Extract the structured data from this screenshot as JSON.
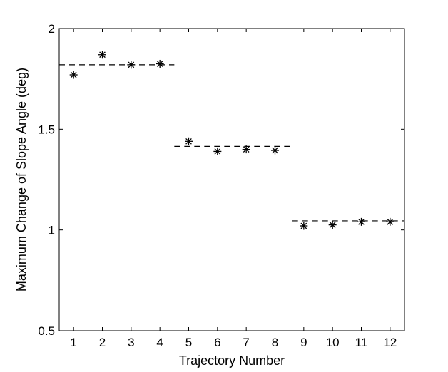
{
  "chart_data": {
    "type": "scatter",
    "title": "",
    "xlabel": "Trajectory Number",
    "ylabel": "Maximum Change of Slope Angle (deg)",
    "xlim": [
      0.5,
      12.5
    ],
    "ylim": [
      0.5,
      2.0
    ],
    "xticks": [
      1,
      2,
      3,
      4,
      5,
      6,
      7,
      8,
      9,
      10,
      11,
      12
    ],
    "yticks": [
      0.5,
      1,
      1.5,
      2
    ],
    "ytick_labels": [
      "0.5",
      "1",
      "1.5",
      "2"
    ],
    "grid": false,
    "marker": "asterisk",
    "series": [
      {
        "x": [
          1,
          2,
          3,
          4,
          5,
          6,
          7,
          8,
          9,
          10,
          11,
          12
        ],
        "values": [
          1.77,
          1.87,
          1.82,
          1.825,
          1.44,
          1.39,
          1.4,
          1.395,
          1.02,
          1.025,
          1.04,
          1.04
        ]
      }
    ],
    "reference_lines": [
      {
        "style": "dashed",
        "x_range": [
          0.5,
          4.5
        ],
        "y": 1.82
      },
      {
        "style": "dashed",
        "x_range": [
          4.5,
          8.6
        ],
        "y": 1.415
      },
      {
        "style": "dashed",
        "x_range": [
          8.6,
          12.5
        ],
        "y": 1.045
      }
    ]
  }
}
